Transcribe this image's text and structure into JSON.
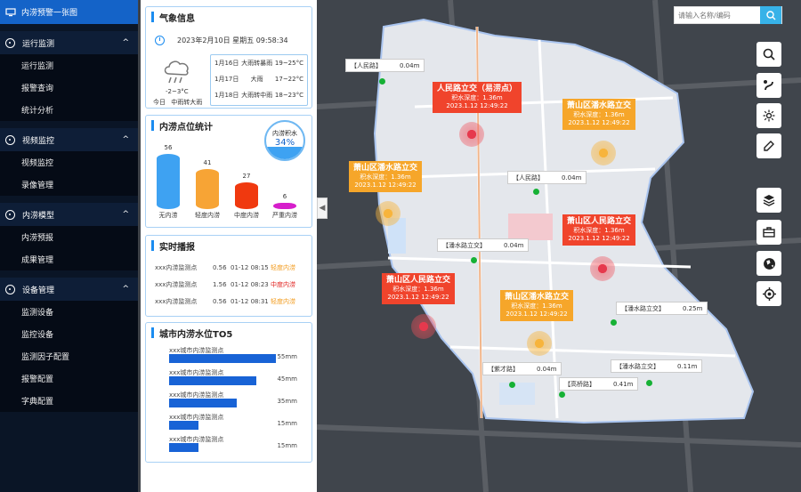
{
  "app": {
    "title": "内涝预警一张图"
  },
  "sidebar": {
    "groups": [
      {
        "label": "运行监测",
        "items": [
          "运行监测",
          "报警查询",
          "统计分析"
        ]
      },
      {
        "label": "视频监控",
        "items": [
          "视频监控",
          "录像管理"
        ]
      },
      {
        "label": "内涝模型",
        "items": [
          "内涝预报",
          "成果管理"
        ]
      },
      {
        "label": "设备管理",
        "items": [
          "监测设备",
          "监控设备",
          "监测因子配置",
          "报警配置",
          "字典配置"
        ]
      }
    ],
    "chevron": "^"
  },
  "weather": {
    "title": "气象信息",
    "datetime": "2023年2月10日 星期五 09:58:34",
    "temp": "-2~3°C",
    "today_label": "今日",
    "today_desc": "中雨转大雨",
    "forecast": [
      {
        "date": "1月16日",
        "desc": "大雨转暴雨",
        "temp": "19~25°C"
      },
      {
        "date": "1月17日",
        "desc": "大雨",
        "temp": "17~22°C"
      },
      {
        "date": "1月18日",
        "desc": "大雨转中雨",
        "temp": "18~23°C"
      }
    ]
  },
  "stats": {
    "title": "内涝点位统计",
    "gauge_label": "内涝积水",
    "gauge_value": "34%",
    "gauge_fraction": 0.34,
    "bars": [
      {
        "value": "56",
        "label": "无内涝",
        "color": "#3ea2f2"
      },
      {
        "value": "41",
        "label": "轻度内涝",
        "color": "#f7a435"
      },
      {
        "value": "27",
        "label": "中度内涝",
        "color": "#f0390f"
      },
      {
        "value": "6",
        "label": "严重内涝",
        "color": "#d61ecb"
      }
    ]
  },
  "realtime": {
    "title": "实时播报",
    "rows": [
      {
        "name": "xxx内涝监测点",
        "value": "0.56",
        "time": "01-12 08:15",
        "level": "轻度内涝",
        "color": "#f29a1a"
      },
      {
        "name": "xxx内涝监测点",
        "value": "1.56",
        "time": "01-12 08:23",
        "level": "中度内涝",
        "color": "#e0201e"
      },
      {
        "name": "xxx内涝监测点",
        "value": "0.56",
        "time": "01-12 08:31",
        "level": "轻度内涝",
        "color": "#f29a1a"
      }
    ]
  },
  "top5": {
    "title": "城市内涝水位TO5",
    "rows": [
      {
        "name": "xxx城市内涝监测点",
        "value": "55mm",
        "amount": 55
      },
      {
        "name": "xxx城市内涝监测点",
        "value": "45mm",
        "amount": 45
      },
      {
        "name": "xxx城市内涝监测点",
        "value": "35mm",
        "amount": 35
      },
      {
        "name": "xxx城市内涝监测点",
        "value": "15mm",
        "amount": 15
      },
      {
        "name": "xxx城市内涝监测点",
        "value": "15mm",
        "amount": 15
      }
    ]
  },
  "collapse_glyph": "◀",
  "map": {
    "search_placeholder": "请输入名称/编码",
    "tools": [
      "search-icon",
      "route-icon",
      "sun-icon",
      "draw-icon",
      "layers-icon",
      "toolbox-icon",
      "globe-icon",
      "locate-icon"
    ],
    "labels": [
      {
        "name": "【人民路】",
        "dist": "0.04m"
      },
      {
        "name": "【人民路】",
        "dist": "0.04m"
      },
      {
        "name": "【潘水路立交】",
        "dist": "0.04m"
      },
      {
        "name": "【潘水路立交】",
        "dist": "0.25m"
      },
      {
        "name": "【紫才路】",
        "dist": "0.04m"
      },
      {
        "name": "【潘水路立交】",
        "dist": "0.11m"
      },
      {
        "name": "【高桥路】",
        "dist": "0.41m"
      }
    ],
    "alerts": [
      {
        "title": "人民路立交（易涝点）",
        "depth": "积水深度：1.36m",
        "time": "2023.1.12  12:49:22",
        "level": "red"
      },
      {
        "title": "萧山区潘水路立交",
        "depth": "积水深度：1.36m",
        "time": "2023.1.12  12:49:22",
        "level": "orange"
      },
      {
        "title": "萧山区潘水路立交",
        "depth": "积水深度：1.36m",
        "time": "2023.1.12  12:49:22",
        "level": "orange"
      },
      {
        "title": "萧山区人民路立交",
        "depth": "积水深度：1.36m",
        "time": "2023.1.12  12:49:22",
        "level": "red"
      },
      {
        "title": "萧山区人民路立交",
        "depth": "积水深度：1.36m",
        "time": "2023.1.12  12:49:22",
        "level": "red"
      },
      {
        "title": "萧山区潘水路立交",
        "depth": "积水深度：1.36m",
        "time": "2023.1.12  12:49:22",
        "level": "orange"
      }
    ]
  }
}
